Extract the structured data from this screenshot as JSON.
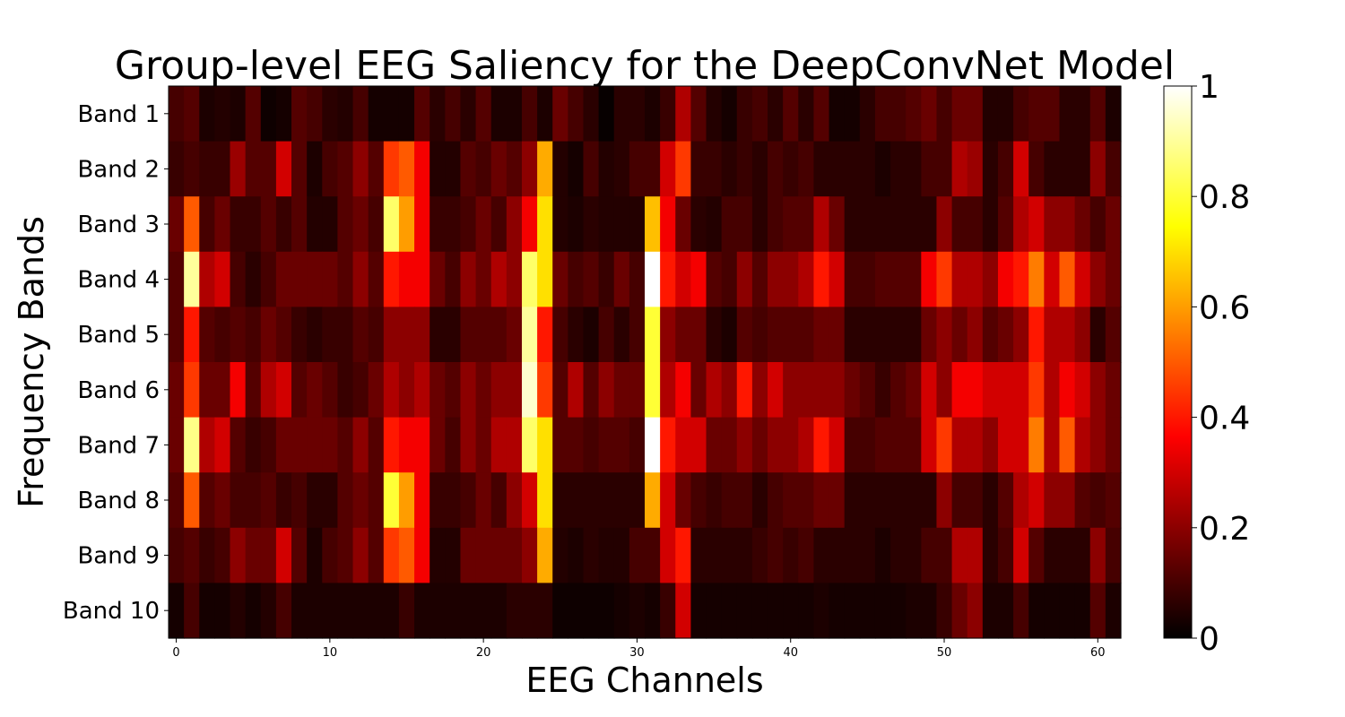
{
  "chart_data": {
    "type": "heatmap",
    "title": "Group-level EEG Saliency for the DeepConvNet Model",
    "xlabel": "EEG Channels",
    "ylabel": "Frequency Bands",
    "rows": [
      "Band 1",
      "Band 2",
      "Band 3",
      "Band 4",
      "Band 5",
      "Band 6",
      "Band 7",
      "Band 8",
      "Band 9",
      "Band 10"
    ],
    "xticks": [
      0,
      10,
      20,
      30,
      40,
      50,
      60
    ],
    "n_channels": 62,
    "colormap": "hot",
    "vmin": 0,
    "vmax": 1,
    "colorbar_ticks": [
      0,
      0.2,
      0.4,
      0.6,
      0.8,
      1
    ],
    "colorbar_tick_labels": [
      "0",
      "0.2",
      "0.4",
      "0.6",
      "0.8",
      "1"
    ],
    "values": [
      [
        0.1,
        0.12,
        0.04,
        0.05,
        0.04,
        0.12,
        0.02,
        0.03,
        0.12,
        0.1,
        0.06,
        0.05,
        0.1,
        0.03,
        0.03,
        0.03,
        0.12,
        0.06,
        0.1,
        0.06,
        0.12,
        0.04,
        0.04,
        0.1,
        0.04,
        0.15,
        0.1,
        0.06,
        0.01,
        0.06,
        0.06,
        0.04,
        0.08,
        0.25,
        0.12,
        0.05,
        0.03,
        0.08,
        0.1,
        0.06,
        0.12,
        0.06,
        0.12,
        0.03,
        0.03,
        0.06,
        0.1,
        0.1,
        0.12,
        0.15,
        0.1,
        0.15,
        0.15,
        0.05,
        0.05,
        0.1,
        0.12,
        0.12,
        0.06,
        0.06,
        0.12,
        0.04
      ],
      [
        0.08,
        0.1,
        0.08,
        0.08,
        0.22,
        0.12,
        0.12,
        0.3,
        0.12,
        0.04,
        0.1,
        0.12,
        0.2,
        0.12,
        0.45,
        0.5,
        0.35,
        0.05,
        0.05,
        0.12,
        0.1,
        0.15,
        0.12,
        0.2,
        0.62,
        0.05,
        0.03,
        0.1,
        0.05,
        0.06,
        0.1,
        0.1,
        0.3,
        0.45,
        0.08,
        0.08,
        0.06,
        0.08,
        0.06,
        0.1,
        0.08,
        0.1,
        0.06,
        0.06,
        0.06,
        0.06,
        0.04,
        0.06,
        0.06,
        0.1,
        0.1,
        0.25,
        0.22,
        0.06,
        0.1,
        0.3,
        0.1,
        0.06,
        0.06,
        0.06,
        0.2,
        0.1
      ],
      [
        0.15,
        0.5,
        0.1,
        0.15,
        0.08,
        0.08,
        0.12,
        0.08,
        0.12,
        0.05,
        0.05,
        0.12,
        0.15,
        0.1,
        0.85,
        0.6,
        0.35,
        0.08,
        0.08,
        0.1,
        0.15,
        0.1,
        0.2,
        0.35,
        0.7,
        0.05,
        0.04,
        0.06,
        0.05,
        0.05,
        0.05,
        0.65,
        0.35,
        0.15,
        0.06,
        0.05,
        0.1,
        0.1,
        0.06,
        0.1,
        0.12,
        0.12,
        0.25,
        0.15,
        0.06,
        0.06,
        0.06,
        0.06,
        0.06,
        0.06,
        0.2,
        0.1,
        0.1,
        0.06,
        0.12,
        0.25,
        0.3,
        0.2,
        0.2,
        0.15,
        0.1,
        0.15
      ],
      [
        0.12,
        0.9,
        0.25,
        0.3,
        0.1,
        0.06,
        0.1,
        0.15,
        0.15,
        0.15,
        0.15,
        0.12,
        0.2,
        0.12,
        0.4,
        0.35,
        0.35,
        0.15,
        0.1,
        0.2,
        0.15,
        0.25,
        0.2,
        0.85,
        0.7,
        0.15,
        0.1,
        0.12,
        0.08,
        0.15,
        0.1,
        1.0,
        0.4,
        0.3,
        0.35,
        0.12,
        0.1,
        0.2,
        0.12,
        0.2,
        0.2,
        0.25,
        0.4,
        0.3,
        0.1,
        0.1,
        0.12,
        0.12,
        0.12,
        0.35,
        0.45,
        0.25,
        0.25,
        0.2,
        0.35,
        0.4,
        0.55,
        0.3,
        0.5,
        0.3,
        0.2,
        0.15
      ],
      [
        0.12,
        0.4,
        0.12,
        0.1,
        0.12,
        0.1,
        0.15,
        0.12,
        0.08,
        0.06,
        0.08,
        0.08,
        0.12,
        0.1,
        0.2,
        0.2,
        0.2,
        0.06,
        0.06,
        0.12,
        0.12,
        0.12,
        0.15,
        0.9,
        0.4,
        0.1,
        0.06,
        0.04,
        0.1,
        0.06,
        0.1,
        0.8,
        0.2,
        0.15,
        0.15,
        0.06,
        0.04,
        0.12,
        0.1,
        0.12,
        0.12,
        0.12,
        0.15,
        0.15,
        0.06,
        0.06,
        0.06,
        0.06,
        0.06,
        0.15,
        0.2,
        0.15,
        0.2,
        0.12,
        0.15,
        0.2,
        0.4,
        0.25,
        0.25,
        0.2,
        0.06,
        0.12
      ],
      [
        0.15,
        0.45,
        0.15,
        0.15,
        0.35,
        0.12,
        0.25,
        0.3,
        0.12,
        0.15,
        0.12,
        0.08,
        0.1,
        0.15,
        0.25,
        0.2,
        0.25,
        0.15,
        0.12,
        0.2,
        0.15,
        0.2,
        0.2,
        0.95,
        0.45,
        0.12,
        0.25,
        0.12,
        0.2,
        0.15,
        0.15,
        0.8,
        0.25,
        0.35,
        0.15,
        0.25,
        0.2,
        0.4,
        0.2,
        0.3,
        0.2,
        0.2,
        0.2,
        0.2,
        0.15,
        0.12,
        0.08,
        0.12,
        0.15,
        0.3,
        0.2,
        0.35,
        0.35,
        0.3,
        0.3,
        0.3,
        0.45,
        0.25,
        0.35,
        0.3,
        0.2,
        0.15
      ],
      [
        0.15,
        0.88,
        0.25,
        0.3,
        0.12,
        0.08,
        0.1,
        0.15,
        0.15,
        0.15,
        0.15,
        0.12,
        0.2,
        0.12,
        0.4,
        0.35,
        0.35,
        0.15,
        0.1,
        0.2,
        0.15,
        0.25,
        0.25,
        0.85,
        0.7,
        0.12,
        0.12,
        0.1,
        0.12,
        0.12,
        0.1,
        1.0,
        0.4,
        0.3,
        0.3,
        0.15,
        0.15,
        0.2,
        0.15,
        0.2,
        0.2,
        0.25,
        0.4,
        0.3,
        0.1,
        0.1,
        0.12,
        0.12,
        0.12,
        0.3,
        0.45,
        0.25,
        0.25,
        0.2,
        0.3,
        0.3,
        0.55,
        0.25,
        0.5,
        0.25,
        0.2,
        0.15
      ],
      [
        0.12,
        0.5,
        0.12,
        0.15,
        0.1,
        0.1,
        0.12,
        0.08,
        0.1,
        0.06,
        0.06,
        0.12,
        0.15,
        0.12,
        0.8,
        0.6,
        0.35,
        0.08,
        0.08,
        0.1,
        0.15,
        0.1,
        0.2,
        0.3,
        0.7,
        0.06,
        0.06,
        0.06,
        0.06,
        0.06,
        0.06,
        0.62,
        0.3,
        0.15,
        0.1,
        0.08,
        0.1,
        0.1,
        0.06,
        0.1,
        0.12,
        0.12,
        0.15,
        0.15,
        0.06,
        0.06,
        0.06,
        0.06,
        0.06,
        0.06,
        0.2,
        0.1,
        0.1,
        0.06,
        0.12,
        0.25,
        0.3,
        0.2,
        0.2,
        0.12,
        0.1,
        0.12
      ],
      [
        0.1,
        0.12,
        0.08,
        0.1,
        0.2,
        0.15,
        0.15,
        0.3,
        0.12,
        0.04,
        0.1,
        0.12,
        0.2,
        0.12,
        0.45,
        0.5,
        0.35,
        0.05,
        0.05,
        0.15,
        0.15,
        0.15,
        0.15,
        0.2,
        0.62,
        0.05,
        0.04,
        0.06,
        0.05,
        0.05,
        0.1,
        0.1,
        0.3,
        0.4,
        0.06,
        0.06,
        0.06,
        0.06,
        0.08,
        0.1,
        0.08,
        0.1,
        0.06,
        0.06,
        0.06,
        0.06,
        0.04,
        0.06,
        0.06,
        0.1,
        0.1,
        0.25,
        0.25,
        0.06,
        0.1,
        0.3,
        0.12,
        0.06,
        0.06,
        0.06,
        0.2,
        0.1
      ],
      [
        0.03,
        0.1,
        0.03,
        0.03,
        0.05,
        0.03,
        0.05,
        0.1,
        0.04,
        0.04,
        0.04,
        0.04,
        0.04,
        0.04,
        0.04,
        0.08,
        0.04,
        0.04,
        0.04,
        0.04,
        0.04,
        0.04,
        0.06,
        0.06,
        0.06,
        0.02,
        0.02,
        0.02,
        0.02,
        0.03,
        0.04,
        0.03,
        0.08,
        0.3,
        0.03,
        0.03,
        0.03,
        0.03,
        0.03,
        0.03,
        0.03,
        0.03,
        0.04,
        0.03,
        0.03,
        0.03,
        0.03,
        0.03,
        0.04,
        0.04,
        0.08,
        0.15,
        0.2,
        0.04,
        0.04,
        0.1,
        0.03,
        0.03,
        0.03,
        0.03,
        0.12,
        0.04
      ]
    ]
  }
}
